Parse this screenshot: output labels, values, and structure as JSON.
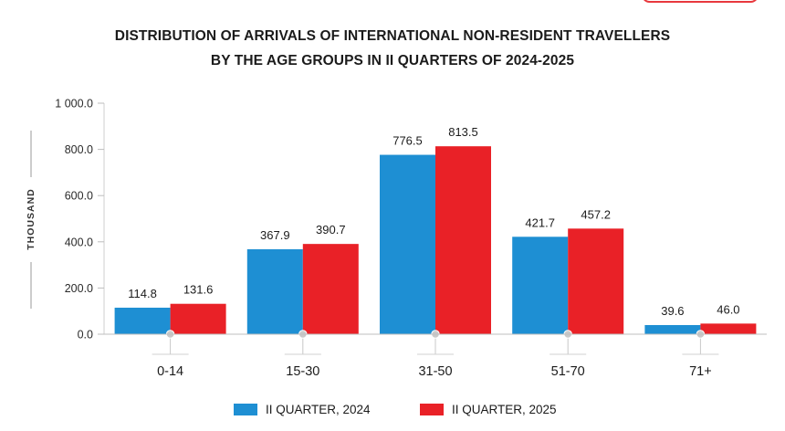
{
  "chart_data": {
    "type": "bar",
    "title_line1": "DISTRIBUTION OF ARRIVALS OF INTERNATIONAL NON-RESIDENT TRAVELLERS",
    "title_line2": "BY THE AGE GROUPS IN II QUARTERS OF 2024-2025",
    "ylabel": "THOUSAND",
    "xlabel": "",
    "categories": [
      "0-14",
      "15-30",
      "31-50",
      "51-70",
      "71+"
    ],
    "series": [
      {
        "name": "II QUARTER, 2024",
        "values": [
          114.8,
          367.9,
          776.5,
          421.7,
          39.6
        ],
        "labels": [
          "114.8",
          "367.9",
          "776.5",
          "421.7",
          "39.6"
        ],
        "color": "#1e8fd3"
      },
      {
        "name": "II QUARTER, 2025",
        "values": [
          131.6,
          390.7,
          813.5,
          457.2,
          46.0
        ],
        "labels": [
          "131.6",
          "390.7",
          "813.5",
          "457.2",
          "46.0"
        ],
        "color": "#e92127"
      }
    ],
    "ylim": [
      0,
      1000
    ],
    "yticks": [
      0,
      200,
      400,
      600,
      800,
      1000
    ],
    "ytick_labels": [
      "0.0",
      "200.0",
      "400.0",
      "600.0",
      "800.0",
      "1 000.0"
    ],
    "grid": false,
    "legend_position": "bottom"
  }
}
